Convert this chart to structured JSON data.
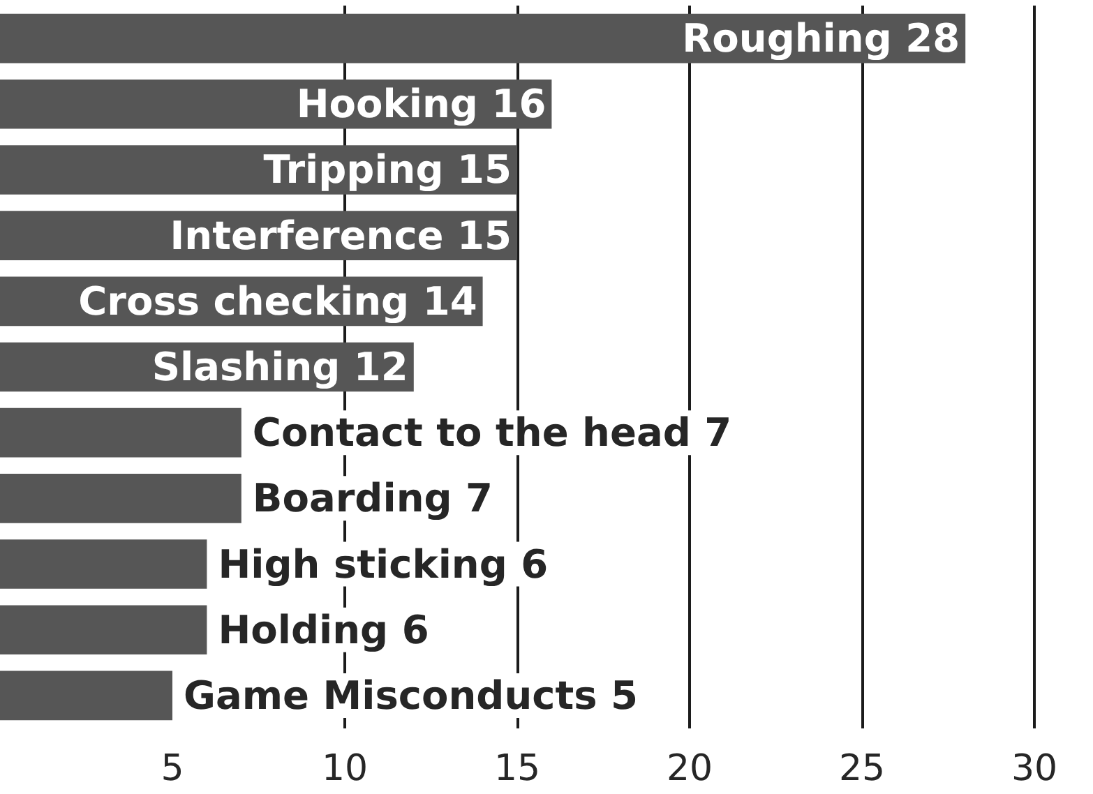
{
  "chart_data": {
    "type": "bar",
    "orientation": "horizontal",
    "categories": [
      "Roughing 28",
      "Hooking 16",
      "Tripping 15",
      "Interference 15",
      "Cross checking 14",
      "Slashing 12",
      "Contact to the head 7",
      "Boarding 7",
      "High sticking 6",
      "Holding 6",
      "Game Misconducts 5"
    ],
    "values": [
      28,
      16,
      15,
      15,
      14,
      12,
      7,
      7,
      6,
      6,
      5
    ],
    "color": "#565656",
    "xlim": [
      0,
      30
    ],
    "xticks": [
      5,
      10,
      15,
      20,
      25,
      30
    ],
    "grid": "x",
    "tick_labels": "x"
  }
}
